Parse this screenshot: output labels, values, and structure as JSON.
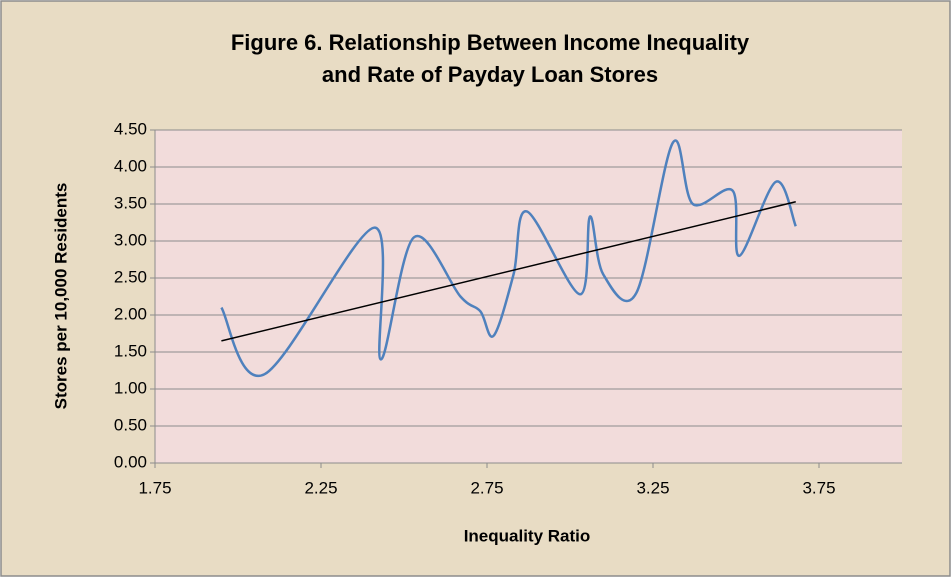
{
  "chart_data": {
    "type": "line",
    "title": [
      "Figure 6. Relationship Between Income Inequality",
      "and Rate of Payday Loan Stores"
    ],
    "x_label": "Inequality Ratio",
    "y_label": "Stores per 10,000 Residents",
    "x": [
      1.95,
      2.08,
      2.41,
      2.43,
      2.53,
      2.67,
      2.73,
      2.77,
      2.83,
      2.87,
      3.03,
      3.06,
      3.1,
      3.2,
      3.31,
      3.37,
      3.49,
      3.51,
      3.62,
      3.68
    ],
    "series": [
      {
        "color": "#4f81bd",
        "values": [
          2.1,
          1.2,
          3.18,
          1.4,
          3.05,
          2.25,
          2.05,
          1.72,
          2.55,
          3.4,
          2.28,
          3.33,
          2.55,
          2.3,
          4.33,
          3.5,
          3.68,
          2.8,
          3.8,
          3.2
        ]
      }
    ],
    "trendline": {
      "x": [
        1.95,
        3.68
      ],
      "y": [
        1.65,
        3.53
      ],
      "color": "#000000"
    },
    "xlim": [
      1.75,
      4.0
    ],
    "xticks": [
      1.75,
      2.25,
      2.75,
      3.25,
      3.75
    ],
    "ylim": [
      0,
      4.5
    ],
    "yticks": [
      {
        "value": 0,
        "label": "0.00"
      },
      {
        "value": 0.5,
        "label": "0.50"
      },
      {
        "value": 1,
        "label": "1.00"
      },
      {
        "value": 1.5,
        "label": "1.50"
      },
      {
        "value": 2,
        "label": "2.00"
      },
      {
        "value": 2.5,
        "label": "2.50"
      },
      {
        "value": 3,
        "label": "3.00"
      },
      {
        "value": 3.5,
        "label": "3.50"
      },
      {
        "value": 4,
        "label": "4.00"
      },
      {
        "value": 4.5,
        "label": "4.50"
      }
    ],
    "grid": true,
    "plot_background": "#f2dcdb",
    "background": "#e8dcc4"
  }
}
